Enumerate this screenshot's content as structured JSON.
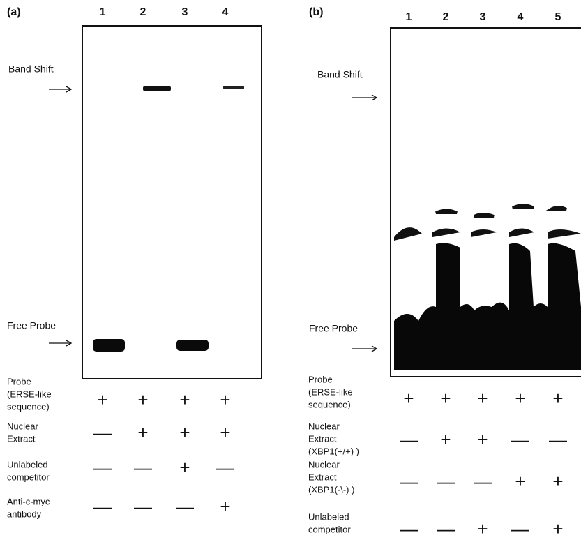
{
  "panels": [
    {
      "label": "(a)",
      "lanes": [
        "1",
        "2",
        "3",
        "4"
      ],
      "markers": [
        "Band Shift",
        "Free Probe"
      ],
      "rows": [
        {
          "label": [
            "Probe",
            "(ERSE-like",
            "sequence)"
          ],
          "signs": [
            "+",
            "+",
            "+",
            "+"
          ]
        },
        {
          "label": [
            "Nuclear",
            "Extract"
          ],
          "signs": [
            "—",
            "+",
            "+",
            "+"
          ]
        },
        {
          "label": [
            "Unlabeled",
            "competitor"
          ],
          "signs": [
            "—",
            "—",
            "+",
            "—"
          ]
        },
        {
          "label": [
            "Anti-c-myc",
            "antibody"
          ],
          "signs": [
            "—",
            "—",
            "—",
            "+"
          ]
        }
      ]
    },
    {
      "label": "(b)",
      "lanes": [
        "1",
        "2",
        "3",
        "4",
        "5"
      ],
      "markers": [
        "Band Shift",
        "Free Probe"
      ],
      "rows": [
        {
          "label": [
            "Probe",
            "(ERSE-like",
            "sequence)"
          ],
          "signs": [
            "+",
            "+",
            "+",
            "+",
            "+"
          ]
        },
        {
          "label": [
            "Nuclear",
            "Extract",
            "(XBP1(+/+) )"
          ],
          "signs": [
            "—",
            "+",
            "+",
            "—",
            "—"
          ]
        },
        {
          "label": [
            "Nuclear",
            "Extract",
            "(XBP1(-\\-) )"
          ],
          "signs": [
            "—",
            "—",
            "—",
            "+",
            "+"
          ]
        },
        {
          "label": [
            "Unlabeled",
            "competitor"
          ],
          "signs": [
            "—",
            "—",
            "+",
            "—",
            "+"
          ]
        }
      ]
    }
  ]
}
